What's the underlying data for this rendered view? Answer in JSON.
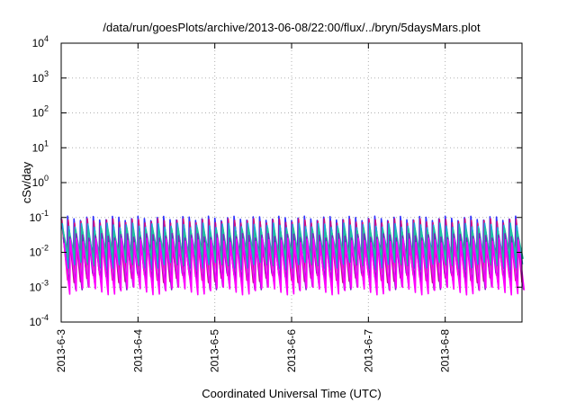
{
  "chart_data": {
    "type": "line",
    "title": "/data/run/goesPlots/archive/2013-06-08/22:00/flux/../bryn/5daysMars.plot",
    "xlabel": "Coordinated Universal Time (UTC)",
    "ylabel": "cSv/day",
    "yscale": "log",
    "ylim": [
      0.0001,
      10000
    ],
    "xlim": [
      "2013-06-03 00:00",
      "2013-06-09 00:00"
    ],
    "x_ticks": [
      "2013-6-3",
      "2013-6-4",
      "2013-6-5",
      "2013-6-6",
      "2013-6-7",
      "2013-6-8"
    ],
    "y_ticks": [
      {
        "base": "10",
        "exp": "-4",
        "value": 0.0001
      },
      {
        "base": "10",
        "exp": "-3",
        "value": 0.001
      },
      {
        "base": "10",
        "exp": "-2",
        "value": 0.01
      },
      {
        "base": "10",
        "exp": "-1",
        "value": 0.1
      },
      {
        "base": "10",
        "exp": "0",
        "value": 1
      },
      {
        "base": "10",
        "exp": "1",
        "value": 10
      },
      {
        "base": "10",
        "exp": "2",
        "value": 100
      },
      {
        "base": "10",
        "exp": "3",
        "value": 1000
      },
      {
        "base": "10",
        "exp": "4",
        "value": 10000
      }
    ],
    "grid": true,
    "cycles_per_day": 12,
    "series": [
      {
        "color": "#3030ff",
        "peak": 0.095,
        "trough": 0.0032
      },
      {
        "color": "#d0107e",
        "peak": 0.08,
        "trough": 0.0018
      },
      {
        "color": "#18a8d8",
        "peak": 0.06,
        "trough": 0.0042
      },
      {
        "color": "#20c0a0",
        "peak": 0.045,
        "trough": 0.0055
      },
      {
        "color": "#8020c0",
        "peak": 0.03,
        "trough": 0.0011
      },
      {
        "color": "#ff00ff",
        "peak": 0.022,
        "trough": 0.0008
      }
    ]
  }
}
